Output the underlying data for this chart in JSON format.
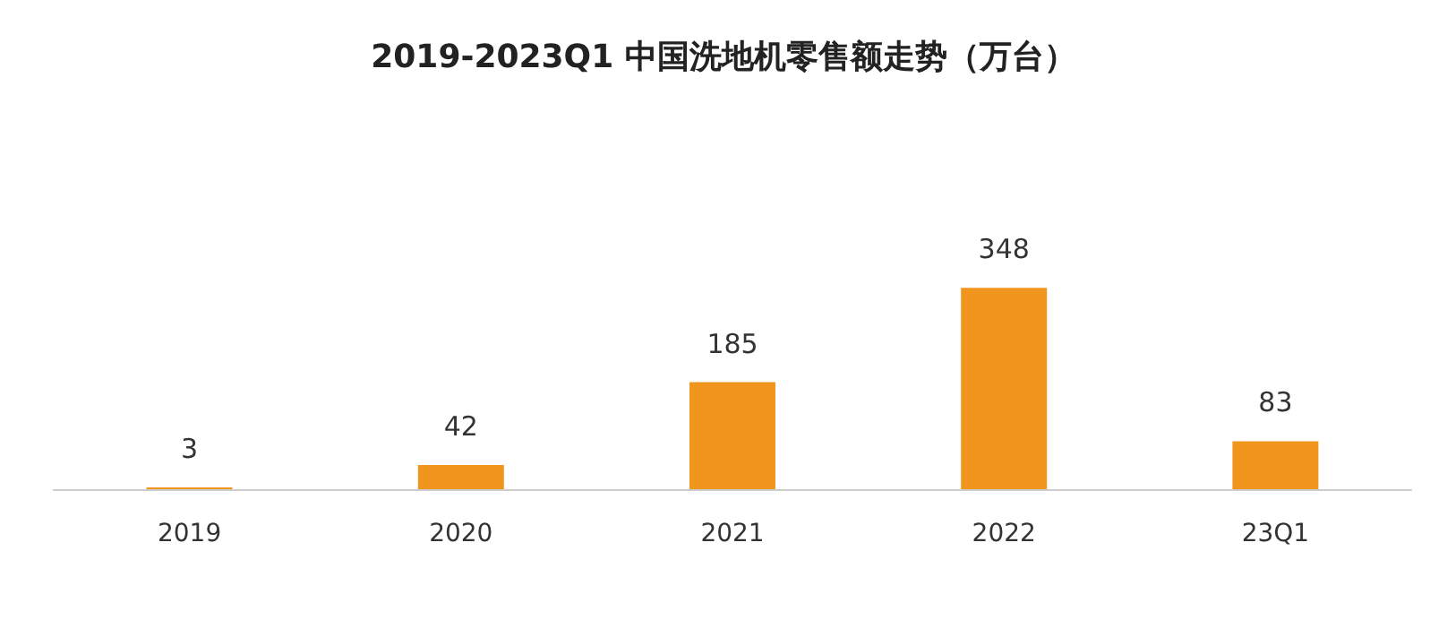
{
  "chart_data": {
    "type": "bar",
    "title": "2019-2023Q1 中国洗地机零售额走势（万台）",
    "categories": [
      "2019",
      "2020",
      "2021",
      "2022",
      "23Q1"
    ],
    "values": [
      3,
      42,
      185,
      348,
      83
    ],
    "color": "#f0961e",
    "data_labels": true
  }
}
